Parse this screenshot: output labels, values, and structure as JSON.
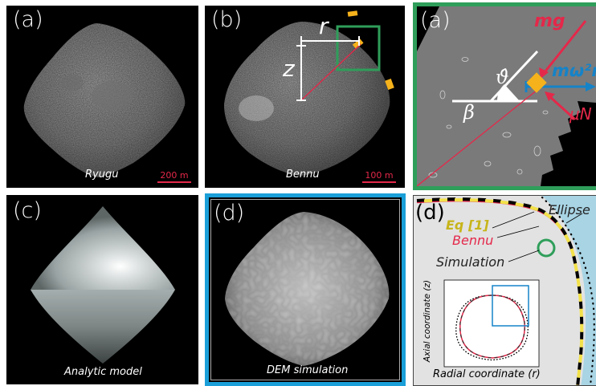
{
  "panel_a": {
    "label": "(a)",
    "caption": "Ryugu",
    "scale_label": "200 m"
  },
  "panel_b": {
    "label": "(b)",
    "caption": "Bennu",
    "scale_label": "100 m",
    "r_label": "r",
    "z_label": "z"
  },
  "panel_c": {
    "label": "(c)",
    "caption": "Analytic model"
  },
  "panel_d": {
    "label": "(d)",
    "caption": "DEM simulation"
  },
  "force_diagram": {
    "label": "(a)",
    "mg": "mg",
    "centrifugal": "mω²r",
    "friction": "μN",
    "theta": "ϑ̂",
    "beta": "β"
  },
  "profile_plot": {
    "label": "(d)",
    "legend": {
      "ellipse": "Ellipse",
      "eq": "Eq [1]",
      "bennu": "Bennu",
      "simulation": "Simulation"
    },
    "inset": {
      "ylabel": "Axial coordinate (z)",
      "xlabel": "Radial coordinate (r)"
    }
  },
  "colors": {
    "green_frame": "#2f9e5a",
    "blue_frame": "#1a9fd8",
    "red": "#e4284a",
    "orange": "#f5b21b",
    "blue_arrow": "#1583c8",
    "eq_yellow": "#f2e14a"
  }
}
